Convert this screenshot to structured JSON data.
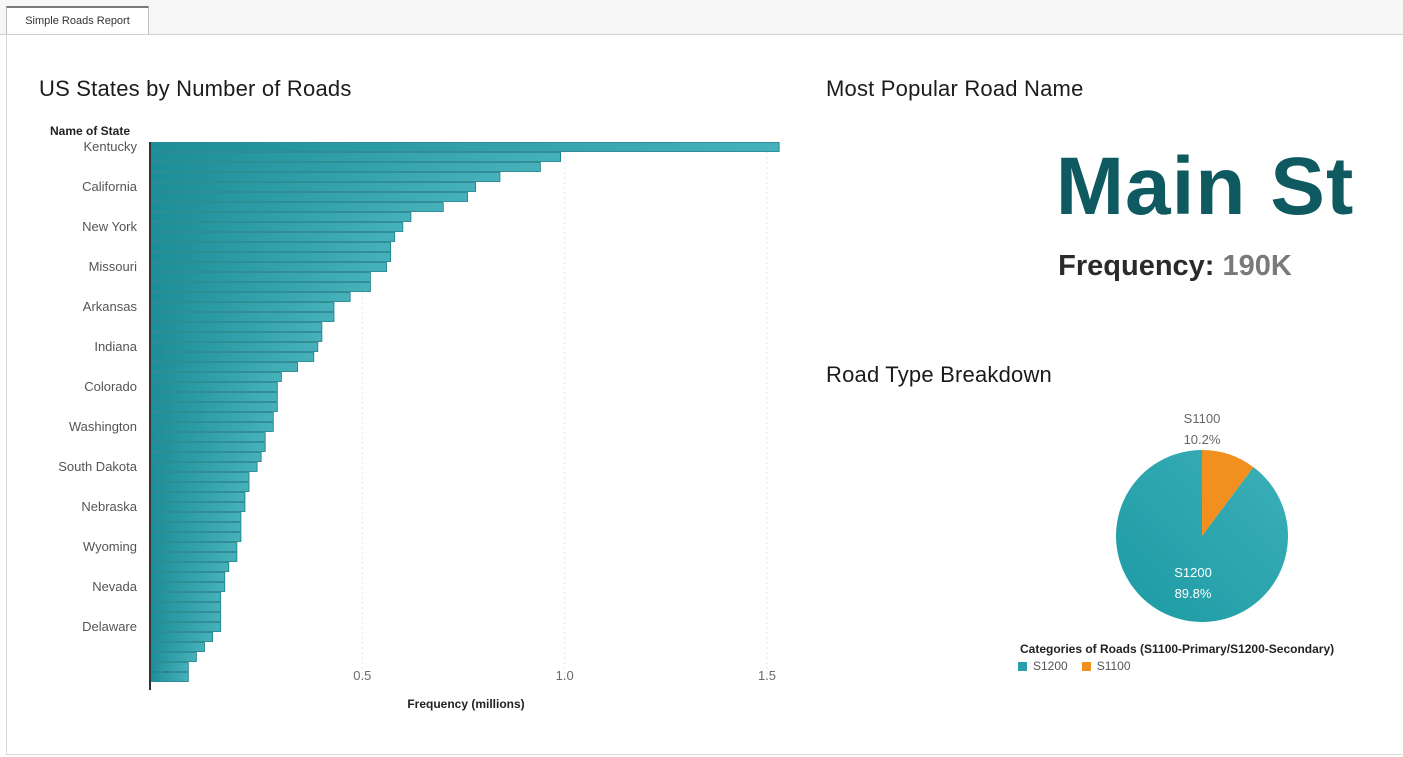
{
  "tab": {
    "label": "Simple Roads Report"
  },
  "bar_section": {
    "title": "US States by Number of Roads"
  },
  "popular": {
    "title": "Most Popular Road Name",
    "name": "Main St",
    "freq_label": "Frequency:",
    "freq_value": "190K"
  },
  "pie_section": {
    "title": "Road Type Breakdown"
  },
  "colors": {
    "teal": "#2a9fa9",
    "teal_dark": "#1a8a93",
    "orange": "#f2901f",
    "title_teal": "#0f5a60"
  },
  "chart_data": [
    {
      "type": "bar",
      "orientation": "horizontal",
      "title": "US States by Number of Roads",
      "ylabel": "Name of State",
      "xlabel": "Frequency (millions)",
      "xlim": [
        0,
        1.5
      ],
      "xticks": [
        "0.0",
        "0.5",
        "1.0",
        "1.5"
      ],
      "category_labels_shown": [
        "Kentucky",
        "California",
        "New York",
        "Missouri",
        "Arkansas",
        "Indiana",
        "Colorado",
        "Washington",
        "South Dakota",
        "Nebraska",
        "Wyoming",
        "Nevada",
        "Delaware"
      ],
      "values": [
        1.53,
        0.99,
        0.94,
        0.84,
        0.78,
        0.76,
        0.7,
        0.62,
        0.6,
        0.58,
        0.57,
        0.57,
        0.56,
        0.52,
        0.52,
        0.47,
        0.43,
        0.43,
        0.4,
        0.4,
        0.39,
        0.38,
        0.34,
        0.3,
        0.29,
        0.29,
        0.29,
        0.28,
        0.28,
        0.26,
        0.26,
        0.25,
        0.24,
        0.22,
        0.22,
        0.21,
        0.21,
        0.2,
        0.2,
        0.2,
        0.19,
        0.19,
        0.17,
        0.16,
        0.16,
        0.15,
        0.15,
        0.15,
        0.15,
        0.13,
        0.11,
        0.09,
        0.07,
        0.07
      ]
    },
    {
      "type": "pie",
      "title": "Road Type Breakdown",
      "legend_title": "Categories of Roads (S1100-Primary/S1200-Secondary)",
      "slices": [
        {
          "label": "S1100",
          "percent": "10.2%",
          "value": 10.2,
          "color": "#f2901f"
        },
        {
          "label": "S1200",
          "percent": "89.8%",
          "value": 89.8,
          "color": "#2a9fa9"
        }
      ],
      "legend": [
        {
          "label": "S1200",
          "color": "#2a9fa9"
        },
        {
          "label": "S1100",
          "color": "#f2901f"
        }
      ]
    }
  ]
}
